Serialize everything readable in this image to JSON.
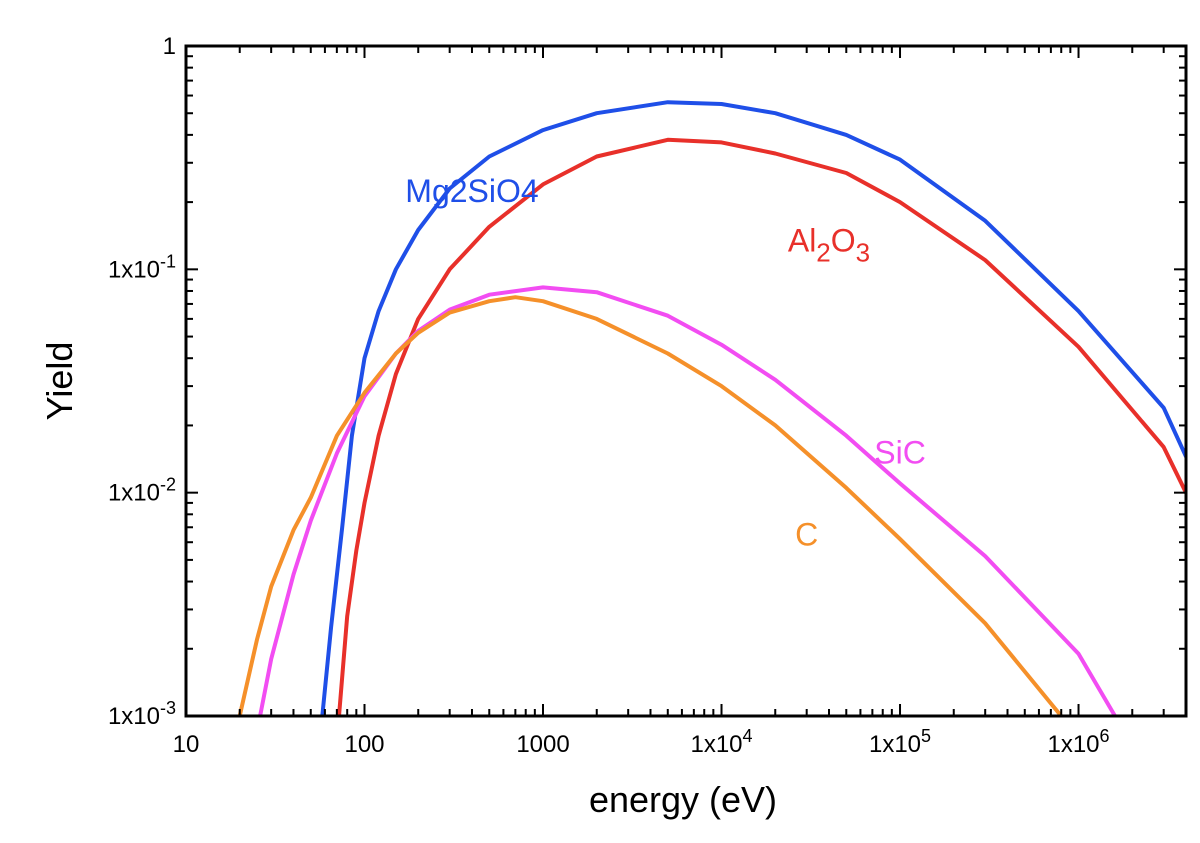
{
  "chart_data": {
    "type": "line",
    "title": "",
    "xlabel": "energy (eV)",
    "ylabel": "Yield",
    "xscale": "log",
    "yscale": "log",
    "xlim": [
      10,
      4000000
    ],
    "ylim": [
      0.001,
      1
    ],
    "grid": false,
    "x_ticks": [
      {
        "value": 10,
        "label": "10"
      },
      {
        "value": 100,
        "label": "100"
      },
      {
        "value": 1000,
        "label": "1000"
      },
      {
        "value": 10000,
        "label": "1x10",
        "exp": "4"
      },
      {
        "value": 100000,
        "label": "1x10",
        "exp": "5"
      },
      {
        "value": 1000000,
        "label": "1x10",
        "exp": "6"
      }
    ],
    "y_ticks": [
      {
        "value": 1,
        "label": "1",
        "exp": ""
      },
      {
        "value": 0.1,
        "label": "1x10",
        "exp": "-1"
      },
      {
        "value": 0.01,
        "label": "1x10",
        "exp": "-2"
      },
      {
        "value": 0.001,
        "label": "1x10",
        "exp": "-3"
      }
    ],
    "series": [
      {
        "name": "Mg2SiO4",
        "label_main": "Mg2SiO4",
        "label_sub": "",
        "color": "#1f4fe8",
        "label_pos": [
          400,
          0.2
        ],
        "points": [
          [
            58,
            0.001
          ],
          [
            65,
            0.0025
          ],
          [
            75,
            0.007
          ],
          [
            85,
            0.018
          ],
          [
            100,
            0.04
          ],
          [
            120,
            0.065
          ],
          [
            150,
            0.1
          ],
          [
            200,
            0.15
          ],
          [
            300,
            0.23
          ],
          [
            500,
            0.32
          ],
          [
            1000,
            0.42
          ],
          [
            2000,
            0.5
          ],
          [
            5000,
            0.56
          ],
          [
            10000,
            0.55
          ],
          [
            20000,
            0.5
          ],
          [
            50000,
            0.4
          ],
          [
            100000,
            0.31
          ],
          [
            300000,
            0.165
          ],
          [
            1000000,
            0.065
          ],
          [
            3000000,
            0.024
          ],
          [
            4000000,
            0.0145
          ]
        ]
      },
      {
        "name": "Al2O3",
        "label_main": "Al",
        "label_sub": "2",
        "label_main2": "O",
        "label_sub2": "3",
        "color": "#e8302a",
        "label_pos": [
          40000,
          0.12
        ],
        "points": [
          [
            72,
            0.001
          ],
          [
            80,
            0.0028
          ],
          [
            90,
            0.0055
          ],
          [
            100,
            0.009
          ],
          [
            120,
            0.018
          ],
          [
            150,
            0.034
          ],
          [
            200,
            0.06
          ],
          [
            300,
            0.1
          ],
          [
            500,
            0.155
          ],
          [
            1000,
            0.24
          ],
          [
            2000,
            0.32
          ],
          [
            5000,
            0.38
          ],
          [
            10000,
            0.37
          ],
          [
            20000,
            0.33
          ],
          [
            50000,
            0.27
          ],
          [
            100000,
            0.2
          ],
          [
            300000,
            0.11
          ],
          [
            1000000,
            0.045
          ],
          [
            3000000,
            0.016
          ],
          [
            4000000,
            0.01
          ]
        ]
      },
      {
        "name": "SiC",
        "label_main": "SiC",
        "label_sub": "",
        "color": "#f24df2",
        "label_pos": [
          100000,
          0.0135
        ],
        "points": [
          [
            26,
            0.001
          ],
          [
            30,
            0.0018
          ],
          [
            40,
            0.0043
          ],
          [
            50,
            0.0075
          ],
          [
            70,
            0.015
          ],
          [
            100,
            0.027
          ],
          [
            150,
            0.042
          ],
          [
            200,
            0.053
          ],
          [
            300,
            0.066
          ],
          [
            500,
            0.077
          ],
          [
            1000,
            0.083
          ],
          [
            2000,
            0.079
          ],
          [
            5000,
            0.062
          ],
          [
            10000,
            0.046
          ],
          [
            20000,
            0.032
          ],
          [
            50000,
            0.018
          ],
          [
            100000,
            0.011
          ],
          [
            300000,
            0.0052
          ],
          [
            1000000,
            0.0019
          ],
          [
            1600000,
            0.001
          ]
        ]
      },
      {
        "name": "C",
        "label_main": "C",
        "label_sub": "",
        "color": "#f5902a",
        "label_pos": [
          30000,
          0.0058
        ],
        "points": [
          [
            20,
            0.001
          ],
          [
            25,
            0.0022
          ],
          [
            30,
            0.0038
          ],
          [
            40,
            0.0068
          ],
          [
            50,
            0.0095
          ],
          [
            70,
            0.018
          ],
          [
            100,
            0.028
          ],
          [
            150,
            0.042
          ],
          [
            200,
            0.052
          ],
          [
            300,
            0.064
          ],
          [
            500,
            0.072
          ],
          [
            700,
            0.075
          ],
          [
            1000,
            0.072
          ],
          [
            2000,
            0.06
          ],
          [
            5000,
            0.042
          ],
          [
            10000,
            0.03
          ],
          [
            20000,
            0.02
          ],
          [
            50000,
            0.0105
          ],
          [
            100000,
            0.0062
          ],
          [
            300000,
            0.0026
          ],
          [
            800000,
            0.001
          ]
        ]
      }
    ]
  }
}
